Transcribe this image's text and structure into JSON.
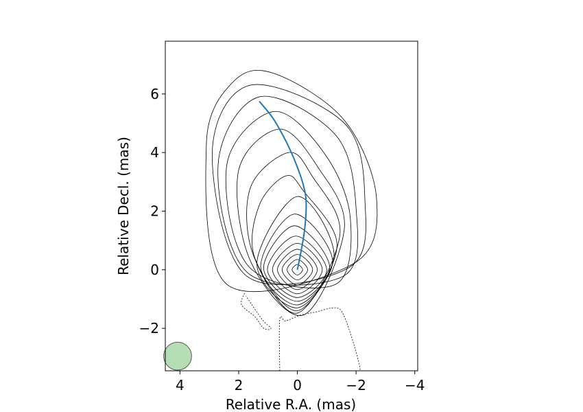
{
  "chart_data": {
    "type": "contour",
    "title": "",
    "xlabel": "Relative R.A. (mas)",
    "ylabel": "Relative Decl. (mas)",
    "xlim": [
      4.5,
      -4.1
    ],
    "ylim": [
      -3.45,
      7.8
    ],
    "x_axis_inverted": true,
    "grid": false,
    "x_ticks": [
      4,
      2,
      0,
      -2,
      -4
    ],
    "x_tick_labels": [
      "4",
      "2",
      "0",
      "−2",
      "−4"
    ],
    "y_ticks": [
      -2,
      0,
      2,
      4,
      6
    ],
    "y_tick_labels": [
      "−2",
      "0",
      "2",
      "4",
      "6"
    ],
    "ridge_line": {
      "color": "#1f77b4",
      "points": [
        [
          0.0,
          0.0
        ],
        [
          -0.12,
          0.6
        ],
        [
          -0.25,
          1.4
        ],
        [
          -0.3,
          2.3
        ],
        [
          -0.2,
          2.9
        ],
        [
          0.0,
          3.5
        ],
        [
          0.25,
          4.1
        ],
        [
          0.5,
          4.6
        ],
        [
          0.85,
          5.2
        ],
        [
          1.3,
          5.75
        ]
      ]
    },
    "contours": {
      "color": "#000000",
      "center": [
        0.0,
        0.0
      ],
      "closed": [
        [
          [
            0.0,
            0.18
          ],
          [
            -0.18,
            0.0
          ],
          [
            0.0,
            -0.18
          ],
          [
            0.18,
            0.0
          ]
        ],
        [
          [
            0.0,
            0.35
          ],
          [
            -0.35,
            0.0
          ],
          [
            0.0,
            -0.35
          ],
          [
            0.35,
            0.0
          ]
        ],
        [
          [
            0.0,
            0.52
          ],
          [
            -0.52,
            0.0
          ],
          [
            0.0,
            -0.52
          ],
          [
            0.52,
            0.0
          ]
        ],
        [
          [
            0.0,
            0.7
          ],
          [
            -0.68,
            0.0
          ],
          [
            0.0,
            -0.68
          ],
          [
            0.68,
            0.0
          ]
        ],
        [
          [
            0.0,
            0.9
          ],
          [
            -0.85,
            0.0
          ],
          [
            0.0,
            -0.82
          ],
          [
            0.85,
            0.0
          ]
        ],
        [
          [
            0.05,
            1.15
          ],
          [
            -1.0,
            0.0
          ],
          [
            0.0,
            -0.95
          ],
          [
            1.02,
            0.0
          ]
        ],
        [
          [
            0.1,
            1.5
          ],
          [
            -1.1,
            0.1
          ],
          [
            0.0,
            -1.08
          ],
          [
            1.15,
            0.05
          ]
        ],
        [
          [
            0.1,
            1.9
          ],
          [
            -1.2,
            0.3
          ],
          [
            0.0,
            -1.2
          ],
          [
            1.25,
            0.1
          ]
        ],
        [
          [
            0.0,
            2.5
          ],
          [
            -1.25,
            0.5
          ],
          [
            0.0,
            -1.3
          ],
          [
            1.38,
            0.2
          ]
        ],
        [
          [
            0.4,
            3.2
          ],
          [
            -0.2,
            2.7
          ],
          [
            -1.35,
            0.8
          ],
          [
            0.0,
            -1.4
          ],
          [
            1.45,
            0.4
          ],
          [
            1.3,
            2.2
          ]
        ],
        [
          [
            0.3,
            4.0
          ],
          [
            -0.5,
            3.2
          ],
          [
            -1.45,
            1.2
          ],
          [
            0.0,
            -1.48
          ],
          [
            1.5,
            0.5
          ],
          [
            1.6,
            2.8
          ]
        ],
        [
          [
            0.6,
            4.8
          ],
          [
            -0.7,
            3.5
          ],
          [
            -1.6,
            1.4
          ],
          [
            -0.2,
            -1.55
          ],
          [
            1.6,
            0.3
          ],
          [
            2.0,
            3.4
          ]
        ],
        [
          [
            0.8,
            5.4
          ],
          [
            -0.9,
            4.0
          ],
          [
            -1.8,
            1.8
          ],
          [
            -1.3,
            -0.5
          ],
          [
            1.65,
            0.1
          ],
          [
            2.4,
            3.6
          ]
        ],
        [
          [
            1.3,
            5.9
          ],
          [
            -1.3,
            4.6
          ],
          [
            -2.0,
            2.1
          ],
          [
            -1.6,
            -0.2
          ],
          [
            1.7,
            -0.1
          ],
          [
            2.7,
            3.6
          ]
        ],
        [
          [
            1.6,
            6.3
          ],
          [
            -1.6,
            5.0
          ],
          [
            -2.3,
            2.4
          ],
          [
            -1.8,
            0.1
          ],
          [
            1.75,
            -0.2
          ],
          [
            2.9,
            4.0
          ]
        ],
        [
          [
            2.2,
            6.4
          ],
          [
            0.8,
            6.7
          ],
          [
            -1.6,
            5.1
          ],
          [
            -2.7,
            2.4
          ],
          [
            -1.9,
            0.2
          ],
          [
            2.4,
            -0.5
          ],
          [
            3.1,
            4.3
          ]
        ]
      ],
      "dashed": [
        [
          [
            1.8,
            -0.8
          ],
          [
            1.9,
            -1.2
          ],
          [
            1.45,
            -1.6
          ],
          [
            1.15,
            -2.0
          ],
          [
            0.9,
            -2.0
          ],
          [
            1.2,
            -1.7
          ],
          [
            1.75,
            -0.9
          ]
        ],
        [
          [
            0.6,
            -3.45
          ],
          [
            0.6,
            -1.7
          ],
          [
            0.4,
            -1.75
          ],
          [
            -0.1,
            -1.55
          ],
          [
            -0.6,
            -1.45
          ],
          [
            -1.3,
            -1.3
          ],
          [
            -1.6,
            -1.6
          ],
          [
            -2.0,
            -2.8
          ],
          [
            -2.15,
            -3.45
          ]
        ]
      ]
    },
    "beam": {
      "center": [
        4.08,
        -2.95
      ],
      "diameter_mas": 0.95,
      "color": "#2ca02c"
    }
  }
}
